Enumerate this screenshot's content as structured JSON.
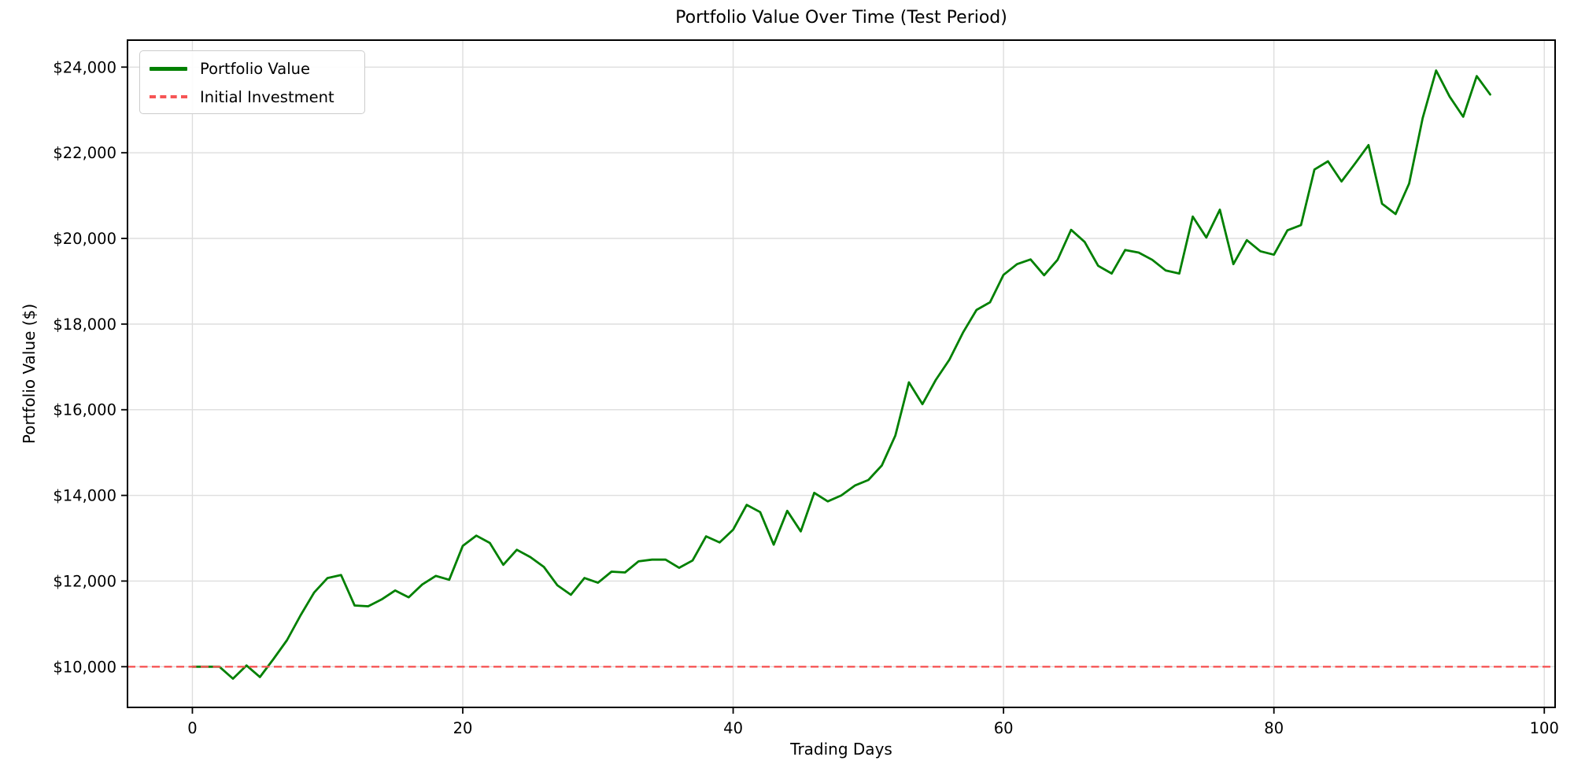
{
  "title": "Portfolio Value Over Time (Test Period)",
  "x_axis": {
    "label": "Trading Days",
    "ticks": [
      0,
      20,
      40,
      60,
      80,
      100
    ]
  },
  "y_axis": {
    "label": "Portfolio Value ($)",
    "ticks": [
      {
        "value": 10000,
        "label": "$10,000"
      },
      {
        "value": 12000,
        "label": "$12,000"
      },
      {
        "value": 14000,
        "label": "$14,000"
      },
      {
        "value": 16000,
        "label": "$16,000"
      },
      {
        "value": 18000,
        "label": "$18,000"
      },
      {
        "value": 20000,
        "label": "$20,000"
      },
      {
        "value": 22000,
        "label": "$22,000"
      },
      {
        "value": 24000,
        "label": "$24,000"
      }
    ]
  },
  "legend": {
    "position": "upper-left",
    "items": [
      {
        "label": "Portfolio Value",
        "color": "#008000",
        "style": "solid"
      },
      {
        "label": "Initial Investment",
        "color": "#f65555",
        "style": "dashed"
      }
    ]
  },
  "chart_data": {
    "type": "line",
    "title": "Portfolio Value Over Time (Test Period)",
    "xlabel": "Trading Days",
    "ylabel": "Portfolio Value ($)",
    "xlim": [
      -4.8,
      100.8
    ],
    "ylim": [
      9050,
      24630
    ],
    "grid": true,
    "legend_position": "upper left",
    "x": [
      0,
      1,
      2,
      3,
      4,
      5,
      6,
      7,
      8,
      9,
      10,
      11,
      12,
      13,
      14,
      15,
      16,
      17,
      18,
      19,
      20,
      21,
      22,
      23,
      24,
      25,
      26,
      27,
      28,
      29,
      30,
      31,
      32,
      33,
      34,
      35,
      36,
      37,
      38,
      39,
      40,
      41,
      42,
      43,
      44,
      45,
      46,
      47,
      48,
      49,
      50,
      51,
      52,
      53,
      54,
      55,
      56,
      57,
      58,
      59,
      60,
      61,
      62,
      63,
      64,
      65,
      66,
      67,
      68,
      69,
      70,
      71,
      72,
      73,
      74,
      75,
      76,
      77,
      78,
      79,
      80,
      81,
      82,
      83,
      84,
      85,
      86,
      87,
      88,
      89,
      90,
      91,
      92,
      93,
      94,
      95,
      96
    ],
    "series": [
      {
        "name": "Portfolio Value",
        "color": "#008000",
        "line_style": "solid",
        "line_width": 2.8,
        "values": [
          10000,
          10000,
          10000,
          9720,
          10030,
          9760,
          10180,
          10620,
          11200,
          11730,
          12070,
          12140,
          11430,
          11410,
          11570,
          11780,
          11620,
          11920,
          12120,
          12030,
          12820,
          13060,
          12890,
          12380,
          12730,
          12560,
          12330,
          11900,
          11680,
          12070,
          11960,
          12220,
          12200,
          12460,
          12500,
          12500,
          12310,
          12480,
          13045,
          12900,
          13200,
          13780,
          13610,
          12850,
          13640,
          13160,
          14060,
          13860,
          14000,
          14230,
          14360,
          14700,
          15400,
          16640,
          16130,
          16700,
          17170,
          17800,
          18330,
          18510,
          19150,
          19400,
          19510,
          19140,
          19500,
          20200,
          19920,
          19360,
          19180,
          19730,
          19670,
          19500,
          19250,
          19180,
          20510,
          20020,
          20670,
          19400,
          19960,
          19700,
          19620,
          20190,
          20310,
          21610,
          21800,
          21330,
          21750,
          22180,
          20810,
          20570,
          21280,
          22810,
          23920,
          23310,
          22840,
          23790,
          23360
        ]
      },
      {
        "name": "Initial Investment",
        "color": "#f65555",
        "line_style": "dashed",
        "line_width": 2.4,
        "type": "hline",
        "value": 10000
      }
    ]
  }
}
